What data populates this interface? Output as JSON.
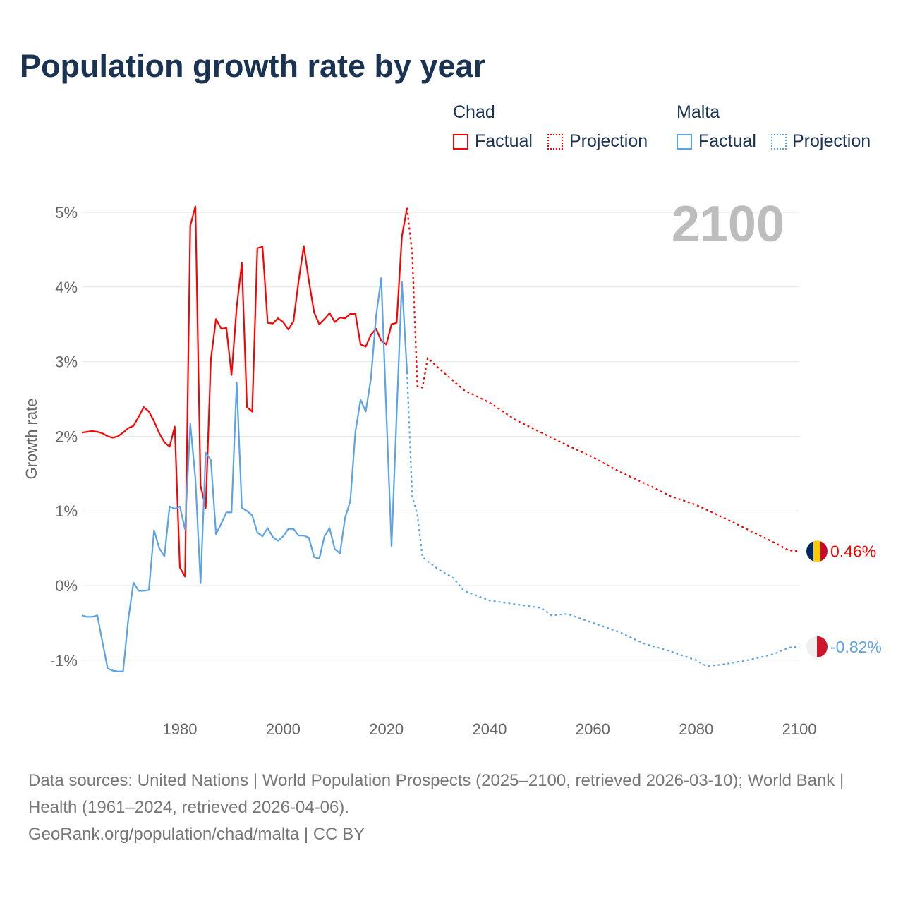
{
  "title": "Population growth rate by year",
  "legend": {
    "groups": [
      {
        "country": "Chad",
        "factual": "Factual",
        "projection": "Projection",
        "color": "#ff0000"
      },
      {
        "country": "Malta",
        "factual": "Factual",
        "projection": "Projection",
        "color": "#5ba3e8"
      }
    ]
  },
  "year_watermark": "2100",
  "footer": {
    "sources": "Data sources: United Nations | World Population Prospects (2025–2100, retrieved 2026-03-10); World Bank | Health (1961–2024, retrieved 2026-04-06).",
    "credit": "GeoRank.org/population/chad/malta | CC BY"
  },
  "chart_data": {
    "type": "line",
    "title": "Population growth rate by year",
    "xlabel": "",
    "ylabel": "Growth rate",
    "xlim": [
      1961,
      2100
    ],
    "ylim": [
      -1.5,
      5.2
    ],
    "xticks": [
      1980,
      2000,
      2020,
      2040,
      2060,
      2080,
      2100
    ],
    "yticks": [
      -1,
      0,
      1,
      2,
      3,
      4,
      5
    ],
    "ytick_labels": [
      "-1%",
      "0%",
      "1%",
      "2%",
      "3%",
      "4%",
      "5%"
    ],
    "grid": true,
    "legend_position": "top-right",
    "series": [
      {
        "name": "Chad Factual",
        "color": "#ff0000",
        "style": "solid",
        "x": [
          1961,
          1962,
          1963,
          1964,
          1965,
          1966,
          1967,
          1968,
          1969,
          1970,
          1971,
          1972,
          1973,
          1974,
          1975,
          1976,
          1977,
          1978,
          1979,
          1980,
          1981,
          1982,
          1983,
          1984,
          1985,
          1986,
          1987,
          1988,
          1989,
          1990,
          1991,
          1992,
          1993,
          1994,
          1995,
          1996,
          1997,
          1998,
          1999,
          2000,
          2001,
          2002,
          2003,
          2004,
          2005,
          2006,
          2007,
          2008,
          2009,
          2010,
          2011,
          2012,
          2013,
          2014,
          2015,
          2016,
          2017,
          2018,
          2019,
          2020,
          2021,
          2022,
          2023,
          2024
        ],
        "y": [
          2.05,
          2.06,
          2.07,
          2.06,
          2.04,
          2.0,
          1.98,
          2.0,
          2.05,
          2.11,
          2.14,
          2.26,
          2.39,
          2.33,
          2.2,
          2.04,
          1.92,
          1.86,
          2.13,
          0.24,
          0.12,
          4.82,
          5.08,
          1.34,
          1.04,
          3.03,
          3.57,
          3.44,
          3.45,
          2.82,
          3.73,
          4.32,
          2.39,
          2.33,
          4.52,
          4.54,
          3.52,
          3.51,
          3.58,
          3.53,
          3.43,
          3.54,
          4.08,
          4.55,
          4.08,
          3.66,
          3.5,
          3.57,
          3.65,
          3.53,
          3.59,
          3.58,
          3.64,
          3.64,
          3.23,
          3.2,
          3.36,
          3.44,
          3.28,
          3.23,
          3.5,
          3.52,
          4.68,
          5.06
        ]
      },
      {
        "name": "Chad Projection",
        "color": "#ff0000",
        "style": "dotted",
        "x": [
          2024,
          2025,
          2026,
          2027,
          2028,
          2030,
          2035,
          2040,
          2045,
          2050,
          2055,
          2060,
          2065,
          2070,
          2075,
          2080,
          2085,
          2090,
          2095,
          2098,
          2100
        ],
        "y": [
          5.06,
          4.45,
          2.67,
          2.65,
          3.05,
          2.92,
          2.62,
          2.45,
          2.22,
          2.05,
          1.88,
          1.72,
          1.53,
          1.37,
          1.2,
          1.08,
          0.92,
          0.75,
          0.58,
          0.47,
          0.46
        ],
        "end_label": "0.46%"
      },
      {
        "name": "Malta Factual",
        "color": "#5ba3e8",
        "style": "solid",
        "x": [
          1961,
          1962,
          1963,
          1964,
          1965,
          1966,
          1967,
          1968,
          1969,
          1970,
          1971,
          1972,
          1973,
          1974,
          1975,
          1976,
          1977,
          1978,
          1979,
          1980,
          1981,
          1982,
          1983,
          1984,
          1985,
          1986,
          1987,
          1988,
          1989,
          1990,
          1991,
          1992,
          1993,
          1994,
          1995,
          1996,
          1997,
          1998,
          1999,
          2000,
          2001,
          2002,
          2003,
          2004,
          2005,
          2006,
          2007,
          2008,
          2009,
          2010,
          2011,
          2012,
          2013,
          2014,
          2015,
          2016,
          2017,
          2018,
          2019,
          2020,
          2021,
          2022,
          2023,
          2024
        ],
        "y": [
          -0.4,
          -0.42,
          -0.42,
          -0.4,
          -0.76,
          -1.11,
          -1.14,
          -1.15,
          -1.15,
          -0.45,
          0.04,
          -0.07,
          -0.07,
          -0.06,
          0.74,
          0.5,
          0.39,
          1.06,
          1.03,
          1.06,
          0.75,
          2.17,
          1.43,
          0.03,
          1.78,
          1.68,
          0.69,
          0.83,
          0.98,
          0.98,
          2.72,
          1.04,
          1.0,
          0.94,
          0.71,
          0.66,
          0.77,
          0.65,
          0.6,
          0.66,
          0.76,
          0.76,
          0.67,
          0.67,
          0.64,
          0.38,
          0.36,
          0.66,
          0.77,
          0.49,
          0.43,
          0.91,
          1.13,
          2.06,
          2.49,
          2.33,
          2.77,
          3.61,
          4.12,
          2.3,
          0.53,
          2.3,
          4.07,
          2.86
        ]
      },
      {
        "name": "Malta Projection",
        "color": "#5ba3e8",
        "style": "dotted",
        "x": [
          2024,
          2025,
          2026,
          2027,
          2030,
          2033,
          2035,
          2040,
          2045,
          2050,
          2052,
          2055,
          2060,
          2065,
          2070,
          2075,
          2080,
          2082,
          2085,
          2090,
          2095,
          2098,
          2100
        ],
        "y": [
          2.86,
          1.2,
          0.95,
          0.38,
          0.22,
          0.1,
          -0.07,
          -0.2,
          -0.25,
          -0.3,
          -0.4,
          -0.38,
          -0.5,
          -0.62,
          -0.78,
          -0.88,
          -1.0,
          -1.08,
          -1.06,
          -1.0,
          -0.92,
          -0.83,
          -0.82
        ],
        "end_label": "-0.82%"
      }
    ]
  }
}
